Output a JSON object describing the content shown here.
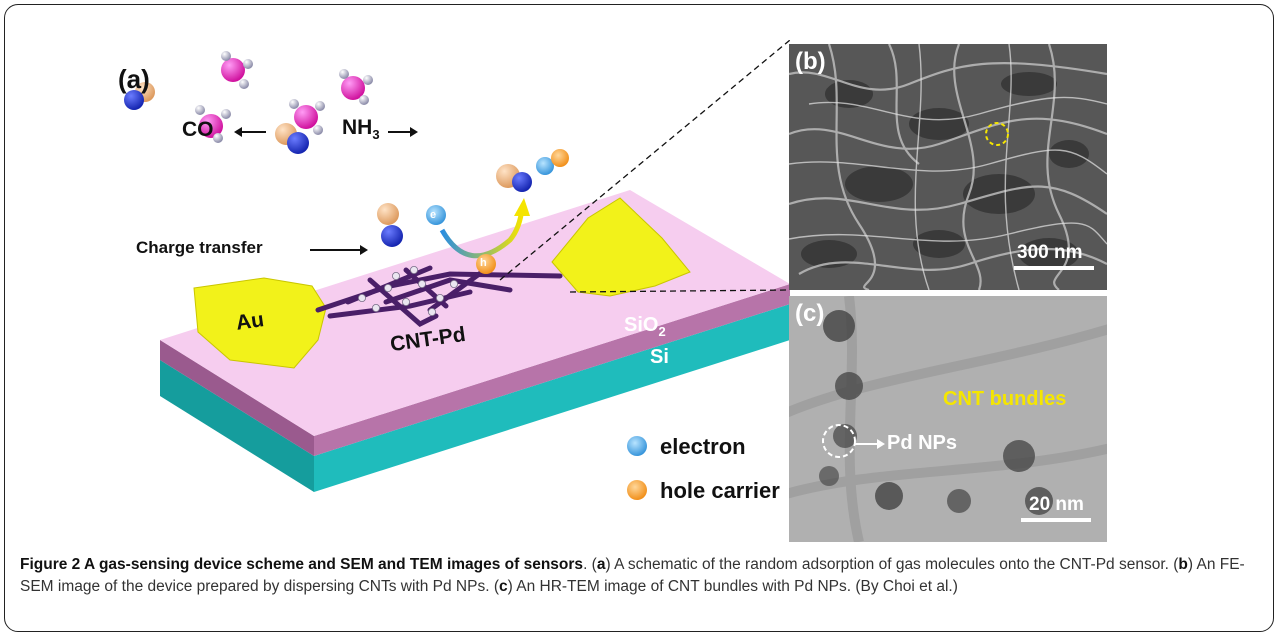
{
  "panel_a": {
    "label": "(a)",
    "co": "CO",
    "nh3": "NH",
    "nh3_sub": "3",
    "charge_transfer": "Charge transfer",
    "au": "Au",
    "cnt_pd": "CNT-Pd",
    "sio2": "SiO",
    "sio2_sub": "2",
    "si": "Si",
    "e_symbol": "e",
    "h_symbol": "h",
    "legend_electron": "electron",
    "legend_hole": "hole carrier"
  },
  "panel_b": {
    "label": "(b)",
    "scale": "300 nm"
  },
  "panel_c": {
    "label": "(c)",
    "bundles": "CNT bundles",
    "pd": "Pd NPs",
    "scale": "20 nm"
  },
  "caption": {
    "title": "Figure 2 A gas-sensing device scheme and SEM and TEM images of sensors",
    "a_key": "a",
    "a_text": ") A schematic of the random adsorption of gas molecules onto the CNT-Pd sensor. (",
    "b_key": "b",
    "b_text": ") An FE-SEM image of the device prepared by dispersing CNTs with Pd NPs. (",
    "c_key": "c",
    "c_text": ") An HR-TEM image of CNT bundles with Pd NPs. (By Choi et al.)"
  },
  "colors": {
    "pink_top": "#f6cdef",
    "sio2_layer": "#b774a9",
    "si_layer": "#1fbcbc",
    "gold": "#f2f21a",
    "label_yellow": "#f5e600"
  }
}
